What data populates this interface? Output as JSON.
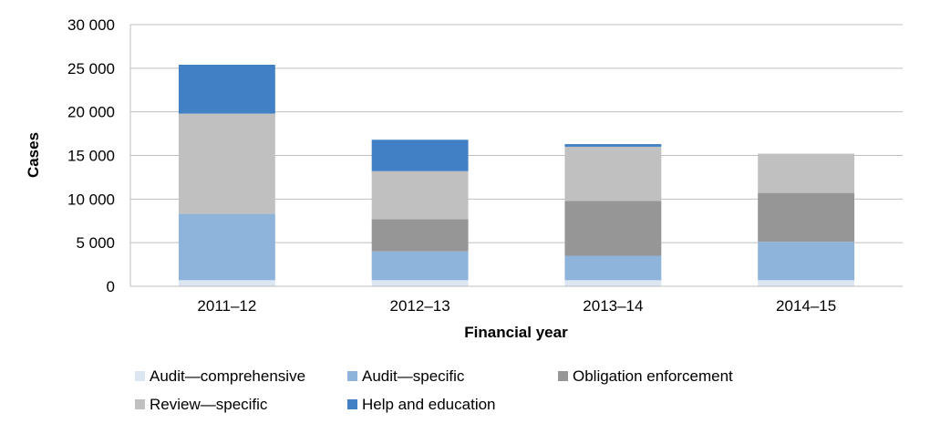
{
  "chart_data": {
    "type": "bar",
    "stacked": true,
    "categories": [
      "2011–12",
      "2012–13",
      "2013–14",
      "2014–15"
    ],
    "xlabel": "Financial year",
    "ylabel": "Cases",
    "ylim": [
      0,
      30000
    ],
    "yticks": [
      0,
      5000,
      10000,
      15000,
      20000,
      25000,
      30000
    ],
    "ytick_labels": [
      "0",
      "5 000",
      "10 000",
      "15 000",
      "20 000",
      "25 000",
      "30 000"
    ],
    "grid": true,
    "legend_position": "bottom",
    "series": [
      {
        "name": "Audit—comprehensive",
        "color": "#dce6f2",
        "values": [
          700,
          700,
          700,
          700
        ]
      },
      {
        "name": "Audit—specific",
        "color": "#8eb4dc",
        "values": [
          7600,
          3300,
          2800,
          4400
        ]
      },
      {
        "name": "Obligation enforcement",
        "color": "#969696",
        "values": [
          0,
          3700,
          6300,
          5600
        ]
      },
      {
        "name": "Review—specific",
        "color": "#c0c0c0",
        "values": [
          11500,
          5500,
          6200,
          4500
        ]
      },
      {
        "name": "Help and education",
        "color": "#4180c4",
        "values": [
          5600,
          3600,
          300,
          0
        ]
      }
    ]
  }
}
